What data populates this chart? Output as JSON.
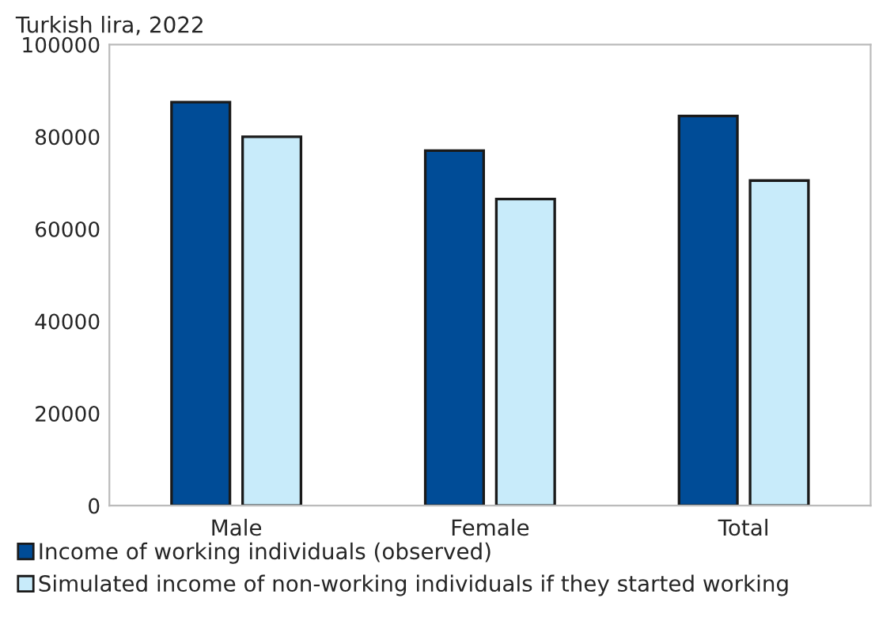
{
  "chart_data": {
    "type": "bar",
    "ylabel": "Turkish lira, 2022",
    "categories": [
      "Male",
      "Female",
      "Total"
    ],
    "series": [
      {
        "name": "Income of working individuals (observed)",
        "color": "#004c97",
        "values": [
          87500,
          77000,
          84500
        ]
      },
      {
        "name": "Simulated income of non-working individuals if they started working",
        "color": "#c8ebfa",
        "values": [
          80000,
          66500,
          70500
        ]
      }
    ],
    "ylim": [
      0,
      100000
    ],
    "yticks": [
      0,
      20000,
      40000,
      60000,
      80000,
      100000
    ],
    "grid": false,
    "legend": "bottom"
  }
}
